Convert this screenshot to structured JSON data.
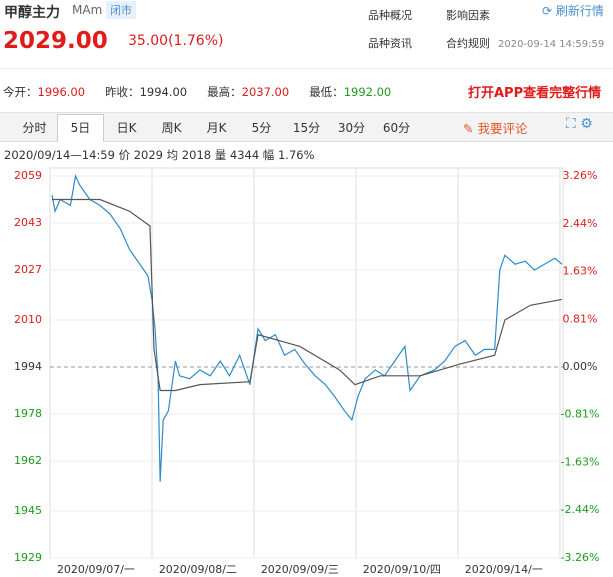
{
  "header": {
    "title": "甲醇主力",
    "code": "MAm",
    "status": "闭市",
    "price": "2029.00",
    "change": "35.00(1.76%)",
    "links": [
      "品种概况",
      "影响因素",
      "品种资讯",
      "合约规则"
    ],
    "refresh": "刷新行情",
    "time": "2020-09-14 14:59:59"
  },
  "stats": [
    {
      "label": "今开：",
      "value": "1996.00"
    },
    {
      "label": "昨收：",
      "value": "1994.00"
    },
    {
      "label": "最高：",
      "value": "2037.00"
    },
    {
      "label": "最低：",
      "value": "1992.00"
    }
  ],
  "app_link": "打开APP查看完整行情",
  "tabs": [
    "分时",
    "5日",
    "日K",
    "周K",
    "月K",
    "5分",
    "15分",
    "30分",
    "60分"
  ],
  "active_tab": 1,
  "comment": "我要评论",
  "info": "2020/09/14—14:59 价 2029 均 2018 量 4344 幅 1.76%",
  "chart_data": {
    "type": "line",
    "ylim": [
      1929,
      2059
    ],
    "yticks": [
      1929,
      1945,
      1962,
      1978,
      1994,
      2010,
      2027,
      2043,
      2059
    ],
    "ref_line": 1994,
    "y2lim": [
      -3.26,
      3.26
    ],
    "y2ticks": [
      {
        "value": -3.26,
        "label": "-3.26%"
      },
      {
        "value": -2.44,
        "label": "-2.44%"
      },
      {
        "value": -1.63,
        "label": "-1.63%"
      },
      {
        "value": -0.81,
        "label": "-0.81%"
      },
      {
        "value": 0,
        "label": "0.00%"
      },
      {
        "value": 0.81,
        "label": "0.81%"
      },
      {
        "value": 1.63,
        "label": "1.63%"
      },
      {
        "value": 2.44,
        "label": "2.44%"
      },
      {
        "value": 3.26,
        "label": "3.26%"
      }
    ],
    "xlim": [
      0,
      5.03
    ],
    "xticks": [
      {
        "value": 0.45,
        "label": "2020/09/07/一"
      },
      {
        "value": 1.45,
        "label": "2020/09/08/二"
      },
      {
        "value": 2.45,
        "label": "2020/09/09/三"
      },
      {
        "value": 3.45,
        "label": "2020/09/10/四"
      },
      {
        "value": 4.45,
        "label": "2020/09/14/一"
      }
    ],
    "series": [
      {
        "color": "#2e8bc9",
        "x": [
          0.02,
          0.05,
          0.1,
          0.2,
          0.25,
          0.29,
          0.39,
          0.49,
          0.59,
          0.69,
          0.78,
          0.88,
          0.96,
          1.0,
          1.03,
          1.06,
          1.08,
          1.11,
          1.16,
          1.23,
          1.27,
          1.37,
          1.47,
          1.57,
          1.67,
          1.76,
          1.86,
          1.96,
          2.04,
          2.11,
          2.21,
          2.3,
          2.4,
          2.5,
          2.6,
          2.7,
          2.79,
          2.89,
          2.96,
          3.02,
          3.09,
          3.19,
          3.28,
          3.38,
          3.48,
          3.53,
          3.63,
          3.77,
          3.87,
          3.97,
          4.07,
          4.17,
          4.26,
          4.36,
          4.41,
          4.46,
          4.56,
          4.66,
          4.75,
          4.85,
          4.95,
          5.02
        ],
        "values": [
          2052.5,
          2047,
          2051,
          2049,
          2059,
          2056,
          2051,
          2049,
          2046,
          2041,
          2034,
          2029,
          2025,
          2017,
          2007,
          1990,
          1955,
          1976,
          1979,
          1996,
          1991,
          1990,
          1993,
          1991,
          1996,
          1991,
          1998,
          1988,
          2007,
          2003,
          2005,
          1998,
          2000,
          1995,
          1991,
          1988,
          1984,
          1979,
          1976,
          1984,
          1990,
          1993,
          1991,
          1996,
          2001,
          1986,
          1991,
          1993,
          1996,
          2001,
          2003,
          1998,
          2000,
          2000,
          2027,
          2032,
          2029,
          2030,
          2027,
          2029,
          2031,
          2029
        ]
      },
      {
        "color": "#555555",
        "x": [
          0.02,
          0.49,
          0.78,
          0.98,
          1.02,
          1.08,
          1.23,
          1.47,
          1.96,
          2.04,
          2.45,
          2.84,
          2.99,
          3.24,
          3.63,
          4.02,
          4.36,
          4.46,
          4.71,
          5.02
        ],
        "values": [
          2051,
          2051,
          2047,
          2042,
          2000,
          1986,
          1986,
          1988,
          1989,
          2005,
          2001,
          1993,
          1988,
          1991,
          1991,
          1995,
          1998,
          2010,
          2015,
          2017
        ]
      }
    ]
  }
}
